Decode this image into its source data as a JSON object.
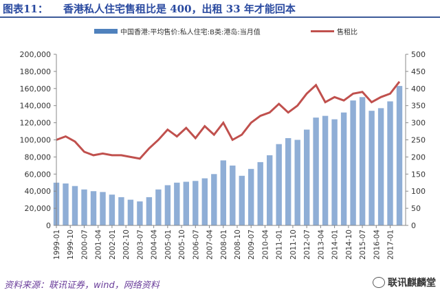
{
  "header": {
    "figure_label": "图表11：",
    "title_text": "香港私人住宅售租比是 400，出租 33 年才能回本"
  },
  "footer": {
    "source": "资料来源：联讯证券，wind，网络资料",
    "watermark": "联讯麒麟堂",
    "watermark_icon": "wechat-icon"
  },
  "colors": {
    "title": "#2a4aa0",
    "bar": "#8faed6",
    "bar_legend": "#4f81bd",
    "line": "#c0504d"
  },
  "chart_data": {
    "type": "bar",
    "title": "",
    "xlabel": "",
    "ylabel": "",
    "ylim": [
      0,
      200000
    ],
    "y2lim": [
      0,
      500
    ],
    "yticks": [
      "0",
      "20,000",
      "40,000",
      "60,000",
      "80,000",
      "100,000",
      "120,000",
      "140,000",
      "160,000",
      "180,000",
      "200,000"
    ],
    "y2ticks": [
      "0",
      "50",
      "100",
      "150",
      "200",
      "250",
      "300",
      "350",
      "400",
      "450",
      "500"
    ],
    "xtick_labels": [
      "1999-01",
      "1999-10",
      "2000-07",
      "2001-04",
      "2002-01",
      "2002-10",
      "2003-07",
      "2004-04",
      "2005-01",
      "2005-10",
      "2006-07",
      "2007-04",
      "2008-01",
      "2008-10",
      "2009-07",
      "2010-04",
      "2011-01",
      "2011-10",
      "2012-07",
      "2013-04",
      "2014-01",
      "2014-10",
      "2015-07",
      "2016-04",
      "2017-01"
    ],
    "legend_position": "top",
    "grid": false,
    "series": [
      {
        "name": "中国香港:平均售价:私人住宅:B类:港岛:当月值",
        "type": "bar",
        "axis": "left",
        "x": [
          "1999-01",
          "1999-07",
          "2000-01",
          "2000-07",
          "2001-01",
          "2001-07",
          "2002-01",
          "2002-07",
          "2003-01",
          "2003-07",
          "2004-01",
          "2004-07",
          "2005-01",
          "2005-07",
          "2006-01",
          "2006-07",
          "2007-01",
          "2007-07",
          "2008-01",
          "2008-07",
          "2009-01",
          "2009-07",
          "2010-01",
          "2010-07",
          "2011-01",
          "2011-07",
          "2012-01",
          "2012-07",
          "2013-01",
          "2013-07",
          "2014-01",
          "2014-07",
          "2015-01",
          "2015-07",
          "2016-01",
          "2016-07",
          "2017-01",
          "2017-07"
        ],
        "values": [
          50000,
          49000,
          46000,
          42000,
          40000,
          39000,
          36000,
          33000,
          30000,
          28000,
          33000,
          42000,
          47000,
          50000,
          51000,
          52000,
          55000,
          60000,
          76000,
          70000,
          58000,
          66000,
          74000,
          82000,
          95000,
          102000,
          100000,
          112000,
          126000,
          128000,
          124000,
          132000,
          146000,
          150000,
          134000,
          137000,
          145000,
          163000
        ]
      },
      {
        "name": "售租比",
        "type": "line",
        "axis": "right",
        "x": [
          "1999-01",
          "1999-07",
          "2000-01",
          "2000-07",
          "2001-01",
          "2001-07",
          "2002-01",
          "2002-07",
          "2003-01",
          "2003-07",
          "2004-01",
          "2004-07",
          "2005-01",
          "2005-07",
          "2006-01",
          "2006-07",
          "2007-01",
          "2007-07",
          "2008-01",
          "2008-07",
          "2009-01",
          "2009-07",
          "2010-01",
          "2010-07",
          "2011-01",
          "2011-07",
          "2012-01",
          "2012-07",
          "2013-01",
          "2013-07",
          "2014-01",
          "2014-07",
          "2015-01",
          "2015-07",
          "2016-01",
          "2016-07",
          "2017-01",
          "2017-07"
        ],
        "values": [
          250,
          260,
          245,
          215,
          205,
          210,
          205,
          205,
          200,
          195,
          225,
          250,
          280,
          260,
          285,
          255,
          290,
          265,
          300,
          250,
          265,
          300,
          320,
          330,
          355,
          330,
          350,
          385,
          410,
          360,
          375,
          365,
          385,
          390,
          360,
          375,
          385,
          420
        ]
      }
    ]
  }
}
